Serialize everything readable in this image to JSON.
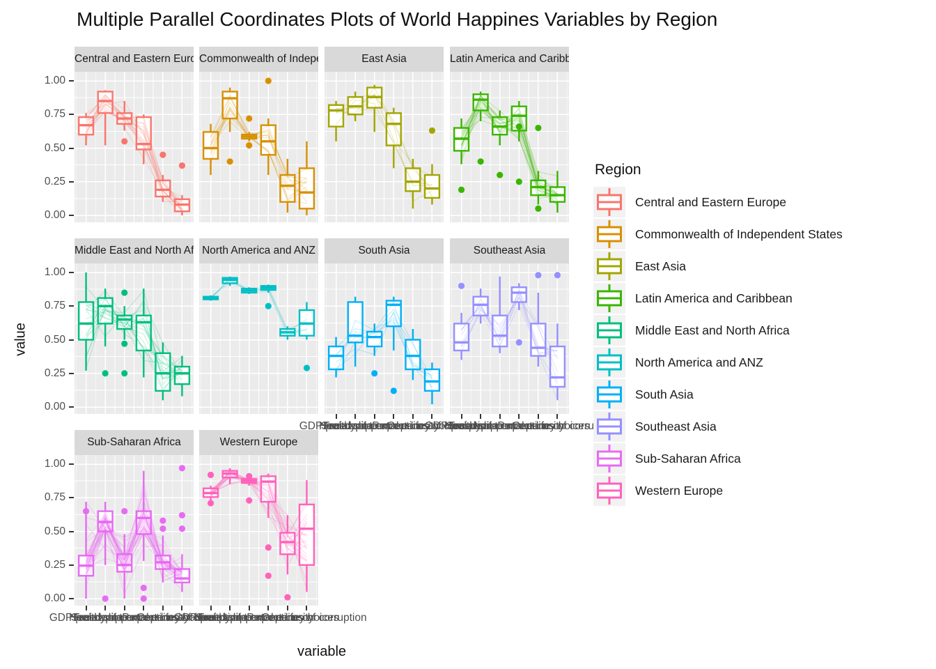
{
  "title": "Multiple Parallel Coordinates Plots of World Happines Variables by Region",
  "axes": {
    "x_title": "variable",
    "y_title": "value",
    "y_ticks": [
      "1.00",
      "0.75",
      "0.50",
      "0.25",
      "0.00"
    ],
    "y_tick_values": [
      1.0,
      0.75,
      0.5,
      0.25,
      0.0
    ]
  },
  "legend": {
    "title": "Region",
    "items": [
      {
        "label": "Central and Eastern Europe",
        "color": "#F8766D"
      },
      {
        "label": "Commonwealth of Independent States",
        "color": "#D89000"
      },
      {
        "label": "East Asia",
        "color": "#A3A500"
      },
      {
        "label": "Latin America and Caribbean",
        "color": "#39B600"
      },
      {
        "label": "Middle East and North Africa",
        "color": "#00BF7D"
      },
      {
        "label": "North America and ANZ",
        "color": "#00BFC4"
      },
      {
        "label": "South Asia",
        "color": "#00B0F6"
      },
      {
        "label": "Southeast Asia",
        "color": "#9590FF"
      },
      {
        "label": "Sub-Saharan Africa",
        "color": "#E76BF3"
      },
      {
        "label": "Western Europe",
        "color": "#FF62BC"
      }
    ]
  },
  "chart_data": {
    "type": "boxplot",
    "subtype": "faceted parallel coordinates with boxplots per variable",
    "x_categories": [
      "GDP per capita",
      "Social support",
      "Healthy life expectancy",
      "Freedom to make life choices",
      "Generosity",
      "Perceptions of corruption"
    ],
    "ylim": [
      0,
      1
    ],
    "grid": true,
    "legend_position": "right",
    "box_stats_format": [
      "whisker_low",
      "q1",
      "median",
      "q3",
      "whisker_high"
    ],
    "facets": [
      {
        "region": "Central and Eastern Europe",
        "color": "#F8766D",
        "row": 0,
        "col": 0,
        "n_lines": 17,
        "boxes": [
          [
            0.52,
            0.6,
            0.67,
            0.73,
            0.76
          ],
          [
            0.52,
            0.76,
            0.85,
            0.92,
            0.93
          ],
          [
            0.63,
            0.68,
            0.72,
            0.76,
            0.85
          ],
          [
            0.38,
            0.49,
            0.53,
            0.73,
            0.75
          ],
          [
            0.1,
            0.14,
            0.19,
            0.26,
            0.3
          ],
          [
            0.0,
            0.03,
            0.08,
            0.12,
            0.15
          ]
        ],
        "outliers": [
          [
            2,
            0.55
          ],
          [
            4,
            0.45
          ],
          [
            5,
            0.37
          ]
        ]
      },
      {
        "region": "Commonwealth of Independent States",
        "color": "#D89000",
        "row": 0,
        "col": 1,
        "n_lines": 12,
        "boxes": [
          [
            0.3,
            0.42,
            0.5,
            0.62,
            0.68
          ],
          [
            0.62,
            0.72,
            0.87,
            0.92,
            0.95
          ],
          [
            0.55,
            0.57,
            0.585,
            0.6,
            0.62
          ],
          [
            0.3,
            0.45,
            0.55,
            0.67,
            0.72
          ],
          [
            0.02,
            0.1,
            0.22,
            0.3,
            0.42
          ],
          [
            0.0,
            0.05,
            0.17,
            0.35,
            0.55
          ]
        ],
        "outliers": [
          [
            1,
            0.4
          ],
          [
            2,
            0.72
          ],
          [
            2,
            0.52
          ],
          [
            3,
            1.0
          ]
        ]
      },
      {
        "region": "East Asia",
        "color": "#A3A500",
        "row": 0,
        "col": 2,
        "n_lines": 6,
        "boxes": [
          [
            0.55,
            0.66,
            0.78,
            0.82,
            0.85
          ],
          [
            0.7,
            0.75,
            0.81,
            0.88,
            0.92
          ],
          [
            0.62,
            0.8,
            0.88,
            0.95,
            0.97
          ],
          [
            0.35,
            0.52,
            0.68,
            0.76,
            0.8
          ],
          [
            0.05,
            0.18,
            0.25,
            0.35,
            0.42
          ],
          [
            0.08,
            0.13,
            0.2,
            0.3,
            0.38
          ]
        ],
        "outliers": [
          [
            5,
            0.63
          ]
        ]
      },
      {
        "region": "Latin America and Caribbean",
        "color": "#39B600",
        "row": 0,
        "col": 3,
        "n_lines": 20,
        "boxes": [
          [
            0.38,
            0.48,
            0.57,
            0.65,
            0.72
          ],
          [
            0.7,
            0.78,
            0.86,
            0.9,
            0.92
          ],
          [
            0.52,
            0.6,
            0.66,
            0.73,
            0.78
          ],
          [
            0.55,
            0.63,
            0.74,
            0.81,
            0.85
          ],
          [
            0.08,
            0.15,
            0.21,
            0.26,
            0.33
          ],
          [
            0.02,
            0.1,
            0.15,
            0.21,
            0.33
          ]
        ],
        "outliers": [
          [
            0,
            0.19
          ],
          [
            1,
            0.4
          ],
          [
            2,
            0.3
          ],
          [
            3,
            0.25
          ],
          [
            3,
            0.66
          ],
          [
            4,
            0.65
          ],
          [
            4,
            0.05
          ]
        ]
      },
      {
        "region": "Middle East and North Africa",
        "color": "#00BF7D",
        "row": 1,
        "col": 0,
        "n_lines": 17,
        "boxes": [
          [
            0.27,
            0.5,
            0.62,
            0.78,
            1.0
          ],
          [
            0.45,
            0.62,
            0.75,
            0.81,
            0.88
          ],
          [
            0.5,
            0.58,
            0.65,
            0.68,
            0.75
          ],
          [
            0.22,
            0.42,
            0.63,
            0.68,
            0.88
          ],
          [
            0.05,
            0.12,
            0.25,
            0.4,
            0.48
          ],
          [
            0.08,
            0.17,
            0.25,
            0.3,
            0.38
          ]
        ],
        "outliers": [
          [
            1,
            0.25
          ],
          [
            2,
            0.85
          ],
          [
            2,
            0.47
          ],
          [
            2,
            0.25
          ]
        ]
      },
      {
        "region": "North America and ANZ",
        "color": "#00BFC4",
        "row": 1,
        "col": 1,
        "n_lines": 4,
        "boxes": [
          [
            0.79,
            0.8,
            0.81,
            0.82,
            0.83
          ],
          [
            0.9,
            0.92,
            0.945,
            0.96,
            0.97
          ],
          [
            0.84,
            0.85,
            0.865,
            0.88,
            0.89
          ],
          [
            0.85,
            0.87,
            0.885,
            0.9,
            0.91
          ],
          [
            0.5,
            0.53,
            0.555,
            0.58,
            0.6
          ],
          [
            0.5,
            0.53,
            0.62,
            0.72,
            0.78
          ]
        ],
        "outliers": [
          [
            3,
            0.75
          ],
          [
            5,
            0.29
          ]
        ]
      },
      {
        "region": "South Asia",
        "color": "#00B0F6",
        "row": 1,
        "col": 2,
        "n_lines": 7,
        "boxes": [
          [
            0.22,
            0.28,
            0.38,
            0.45,
            0.52
          ],
          [
            0.3,
            0.48,
            0.53,
            0.78,
            0.82
          ],
          [
            0.38,
            0.45,
            0.52,
            0.56,
            0.62
          ],
          [
            0.42,
            0.6,
            0.76,
            0.79,
            0.82
          ],
          [
            0.2,
            0.28,
            0.38,
            0.5,
            0.58
          ],
          [
            0.02,
            0.12,
            0.19,
            0.28,
            0.33
          ]
        ],
        "outliers": [
          [
            2,
            0.25
          ],
          [
            3,
            0.12
          ]
        ]
      },
      {
        "region": "Southeast Asia",
        "color": "#9590FF",
        "row": 1,
        "col": 3,
        "n_lines": 9,
        "boxes": [
          [
            0.35,
            0.42,
            0.48,
            0.62,
            0.7
          ],
          [
            0.62,
            0.68,
            0.76,
            0.82,
            0.88
          ],
          [
            0.4,
            0.45,
            0.53,
            0.68,
            0.97
          ],
          [
            0.72,
            0.78,
            0.85,
            0.89,
            0.92
          ],
          [
            0.3,
            0.38,
            0.44,
            0.62,
            0.85
          ],
          [
            0.05,
            0.15,
            0.22,
            0.45,
            0.62
          ]
        ],
        "outliers": [
          [
            0,
            0.9
          ],
          [
            3,
            0.48
          ],
          [
            4,
            0.98
          ],
          [
            5,
            0.98
          ]
        ]
      },
      {
        "region": "Sub-Saharan Africa",
        "color": "#E76BF3",
        "row": 2,
        "col": 0,
        "n_lines": 36,
        "boxes": [
          [
            0.0,
            0.17,
            0.245,
            0.32,
            0.72
          ],
          [
            0.25,
            0.5,
            0.57,
            0.65,
            0.72
          ],
          [
            0.0,
            0.2,
            0.25,
            0.33,
            0.48
          ],
          [
            0.28,
            0.48,
            0.6,
            0.65,
            0.95
          ],
          [
            0.12,
            0.22,
            0.27,
            0.32,
            0.47
          ],
          [
            0.05,
            0.12,
            0.15,
            0.22,
            0.33
          ]
        ],
        "outliers": [
          [
            0,
            0.65
          ],
          [
            1,
            0.0
          ],
          [
            2,
            0.65
          ],
          [
            3,
            0.08
          ],
          [
            3,
            0.0
          ],
          [
            4,
            0.58
          ],
          [
            4,
            0.52
          ],
          [
            5,
            0.97
          ],
          [
            5,
            0.62
          ],
          [
            5,
            0.52
          ]
        ]
      },
      {
        "region": "Western Europe",
        "color": "#FF62BC",
        "row": 2,
        "col": 1,
        "n_lines": 21,
        "boxes": [
          [
            0.73,
            0.755,
            0.785,
            0.82,
            0.84
          ],
          [
            0.85,
            0.9,
            0.93,
            0.95,
            0.97
          ],
          [
            0.84,
            0.86,
            0.875,
            0.89,
            0.9
          ],
          [
            0.6,
            0.72,
            0.87,
            0.91,
            0.93
          ],
          [
            0.18,
            0.33,
            0.42,
            0.49,
            0.62
          ],
          [
            0.05,
            0.25,
            0.52,
            0.7,
            0.88
          ]
        ],
        "outliers": [
          [
            0,
            0.92
          ],
          [
            0,
            0.71
          ],
          [
            2,
            0.91
          ],
          [
            2,
            0.73
          ],
          [
            3,
            0.38
          ],
          [
            3,
            0.17
          ],
          [
            4,
            0.01
          ]
        ]
      }
    ]
  }
}
